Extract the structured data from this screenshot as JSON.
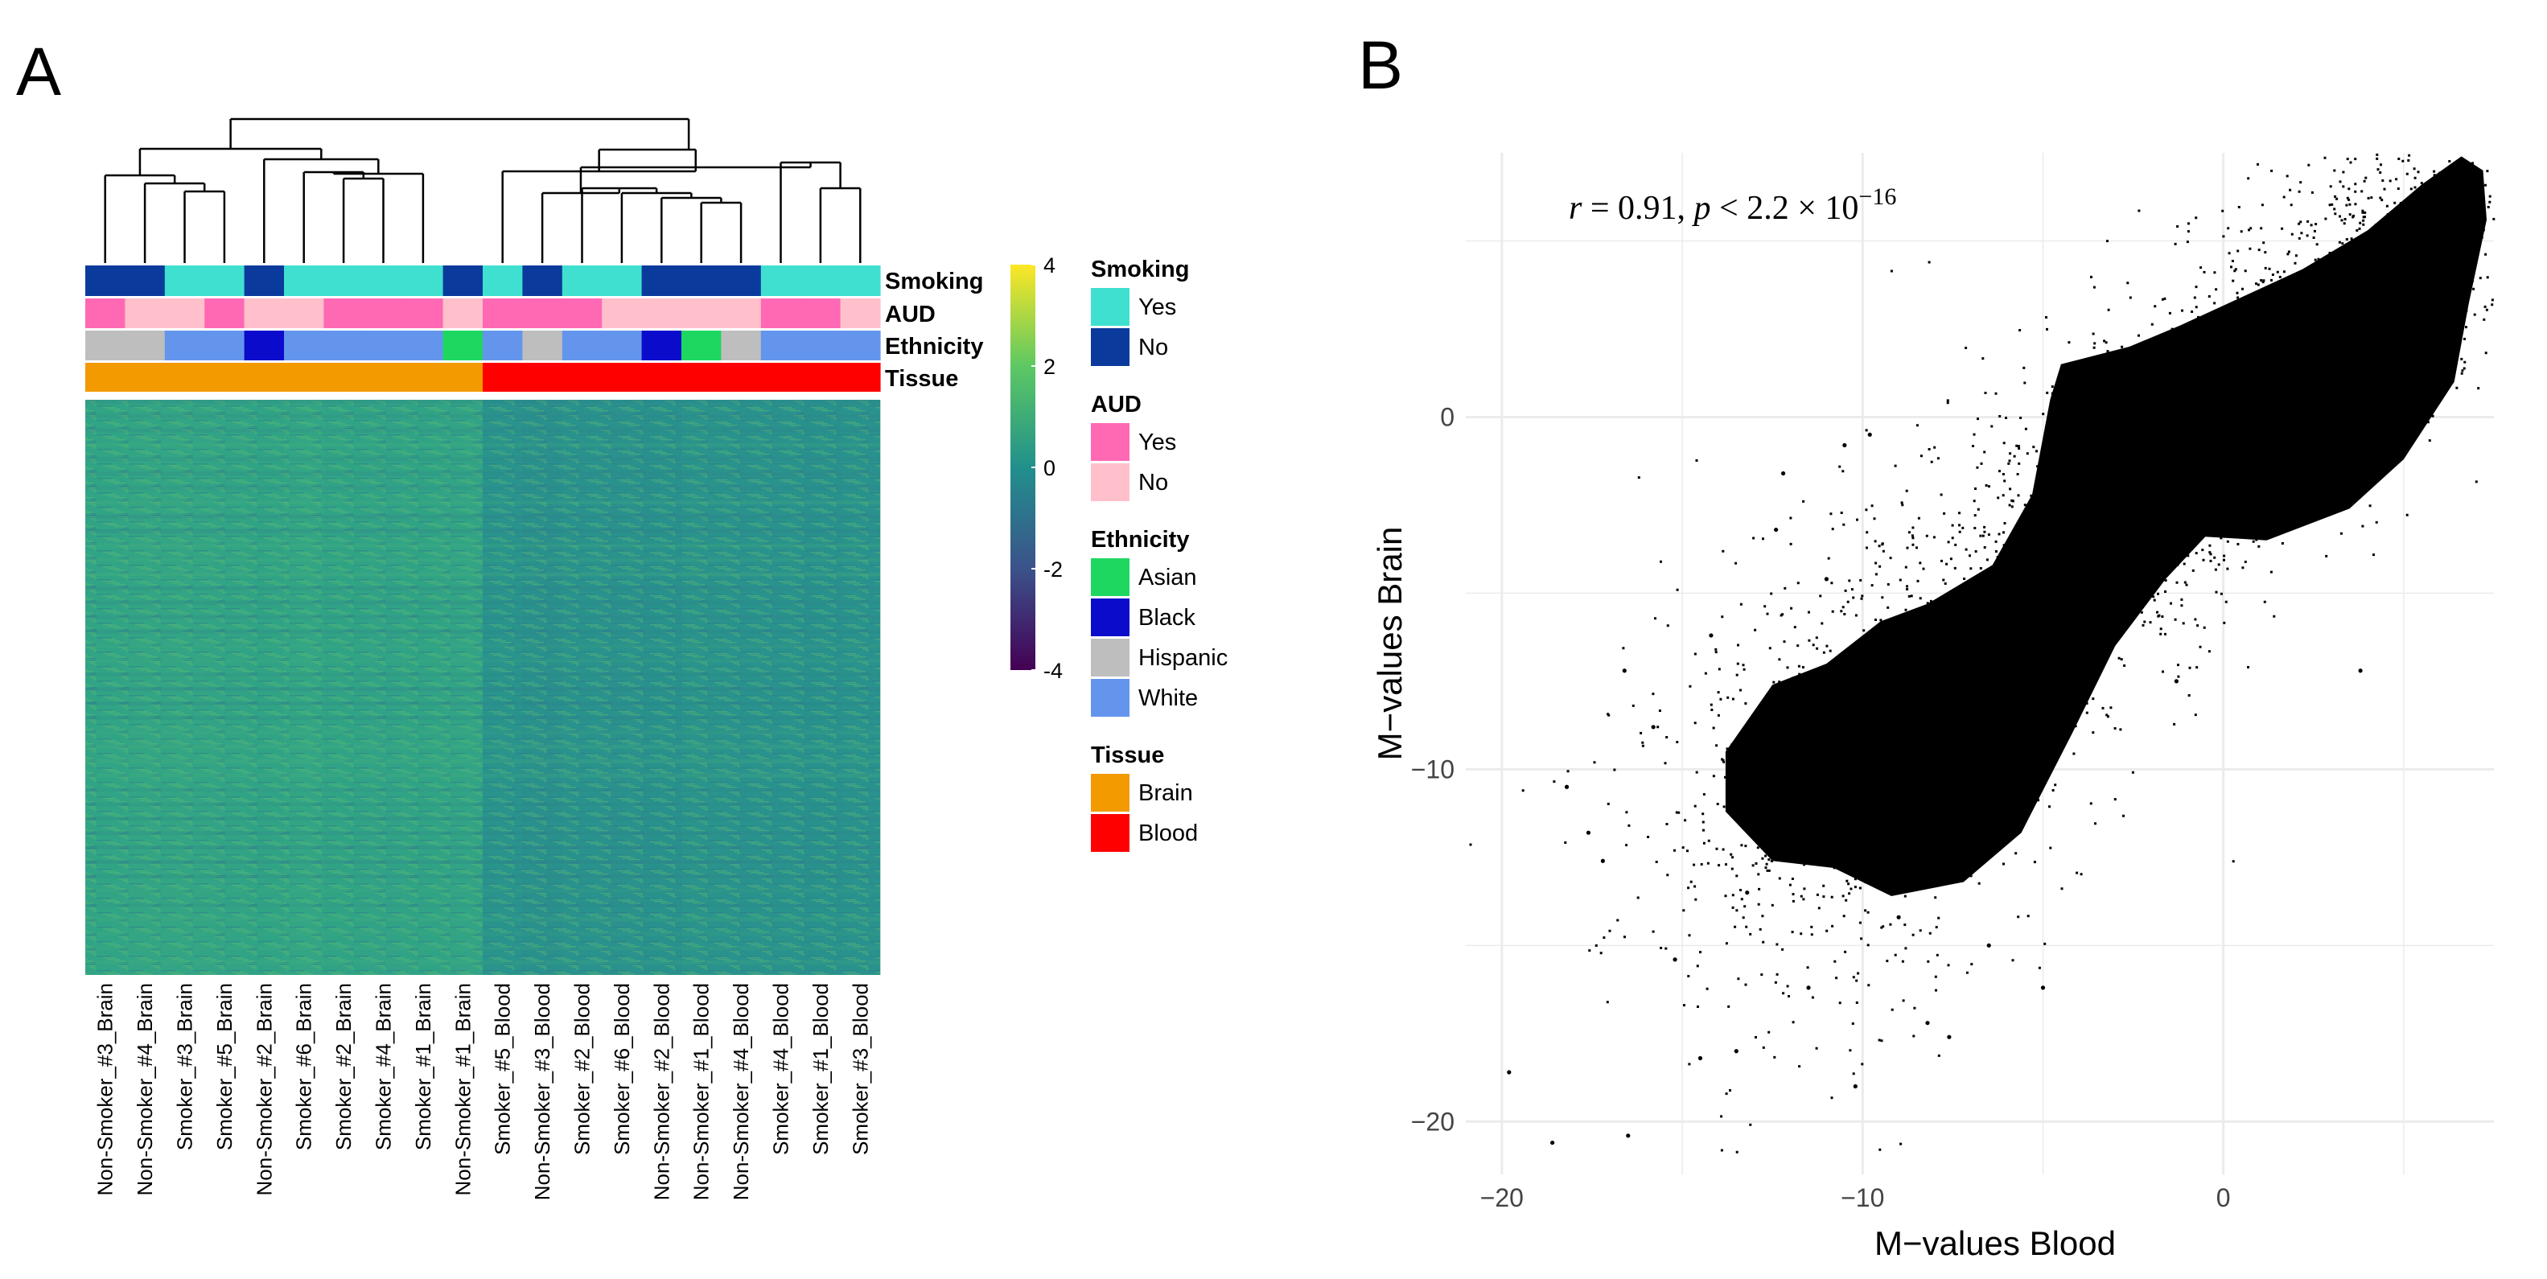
{
  "panels": {
    "a_label": "A",
    "b_label": "B"
  },
  "colors": {
    "smoking_yes": "#40E0D0",
    "smoking_no": "#0A3A9C",
    "aud_yes": "#FF69B4",
    "aud_no": "#FFC0CB",
    "eth_asian": "#1ED760",
    "eth_black": "#0B0BCC",
    "eth_hispanic": "#BEBEBE",
    "eth_white": "#6495ED",
    "tissue_brain": "#F29A00",
    "tissue_blood": "#FF0000",
    "viridis": [
      "#440154",
      "#3B528B",
      "#21908C",
      "#5DC863",
      "#FDE725"
    ]
  },
  "heatmap": {
    "samples": [
      {
        "name": "Non-Smoker_#3_Brain",
        "smoking": "No",
        "aud": "Yes",
        "ethnicity": "Hispanic",
        "tissue": "Brain"
      },
      {
        "name": "Non-Smoker_#4_Brain",
        "smoking": "No",
        "aud": "No",
        "ethnicity": "Hispanic",
        "tissue": "Brain"
      },
      {
        "name": "Smoker_#3_Brain",
        "smoking": "Yes",
        "aud": "No",
        "ethnicity": "White",
        "tissue": "Brain"
      },
      {
        "name": "Smoker_#5_Brain",
        "smoking": "Yes",
        "aud": "Yes",
        "ethnicity": "White",
        "tissue": "Brain"
      },
      {
        "name": "Non-Smoker_#2_Brain",
        "smoking": "No",
        "aud": "No",
        "ethnicity": "Black",
        "tissue": "Brain"
      },
      {
        "name": "Smoker_#6_Brain",
        "smoking": "Yes",
        "aud": "No",
        "ethnicity": "White",
        "tissue": "Brain"
      },
      {
        "name": "Smoker_#2_Brain",
        "smoking": "Yes",
        "aud": "Yes",
        "ethnicity": "White",
        "tissue": "Brain"
      },
      {
        "name": "Smoker_#4_Brain",
        "smoking": "Yes",
        "aud": "Yes",
        "ethnicity": "White",
        "tissue": "Brain"
      },
      {
        "name": "Smoker_#1_Brain",
        "smoking": "Yes",
        "aud": "Yes",
        "ethnicity": "White",
        "tissue": "Brain"
      },
      {
        "name": "Non-Smoker_#1_Brain",
        "smoking": "No",
        "aud": "No",
        "ethnicity": "Asian",
        "tissue": "Brain"
      },
      {
        "name": "Smoker_#5_Blood",
        "smoking": "Yes",
        "aud": "Yes",
        "ethnicity": "White",
        "tissue": "Blood"
      },
      {
        "name": "Non-Smoker_#3_Blood",
        "smoking": "No",
        "aud": "Yes",
        "ethnicity": "Hispanic",
        "tissue": "Blood"
      },
      {
        "name": "Smoker_#2_Blood",
        "smoking": "Yes",
        "aud": "Yes",
        "ethnicity": "White",
        "tissue": "Blood"
      },
      {
        "name": "Smoker_#6_Blood",
        "smoking": "Yes",
        "aud": "No",
        "ethnicity": "White",
        "tissue": "Blood"
      },
      {
        "name": "Non-Smoker_#2_Blood",
        "smoking": "No",
        "aud": "No",
        "ethnicity": "Black",
        "tissue": "Blood"
      },
      {
        "name": "Non-Smoker_#1_Blood",
        "smoking": "No",
        "aud": "No",
        "ethnicity": "Asian",
        "tissue": "Blood"
      },
      {
        "name": "Non-Smoker_#4_Blood",
        "smoking": "No",
        "aud": "No",
        "ethnicity": "Hispanic",
        "tissue": "Blood"
      },
      {
        "name": "Smoker_#4_Blood",
        "smoking": "Yes",
        "aud": "Yes",
        "ethnicity": "White",
        "tissue": "Blood"
      },
      {
        "name": "Smoker_#1_Blood",
        "smoking": "Yes",
        "aud": "Yes",
        "ethnicity": "White",
        "tissue": "Blood"
      },
      {
        "name": "Smoker_#3_Blood",
        "smoking": "Yes",
        "aud": "No",
        "ethnicity": "White",
        "tissue": "Blood"
      }
    ],
    "annotation_rows": [
      "Smoking",
      "AUD",
      "Ethnicity",
      "Tissue"
    ],
    "colorbar": {
      "ticks": [
        4,
        2,
        0,
        -2,
        -4
      ],
      "range": [
        -4,
        4
      ]
    },
    "legend": [
      {
        "title": "Smoking",
        "items": [
          {
            "label": "Yes",
            "color_key": "smoking_yes"
          },
          {
            "label": "No",
            "color_key": "smoking_no"
          }
        ]
      },
      {
        "title": "AUD",
        "items": [
          {
            "label": "Yes",
            "color_key": "aud_yes"
          },
          {
            "label": "No",
            "color_key": "aud_no"
          }
        ]
      },
      {
        "title": "Ethnicity",
        "items": [
          {
            "label": "Asian",
            "color_key": "eth_asian"
          },
          {
            "label": "Black",
            "color_key": "eth_black"
          },
          {
            "label": "Hispanic",
            "color_key": "eth_hispanic"
          },
          {
            "label": "White",
            "color_key": "eth_white"
          }
        ]
      },
      {
        "title": "Tissue",
        "items": [
          {
            "label": "Brain",
            "color_key": "tissue_brain"
          },
          {
            "label": "Blood",
            "color_key": "tissue_blood"
          }
        ]
      }
    ]
  },
  "chart_data": {
    "type": "scatter",
    "xlabel": "M−values Blood",
    "ylabel": "M−values Brain",
    "xlim": [
      -21,
      7.5
    ],
    "ylim": [
      -21.5,
      7.5
    ],
    "xticks": [
      -20,
      -10,
      0
    ],
    "yticks": [
      0,
      -10,
      -20
    ],
    "xtick_labels": [
      "−20",
      "−10",
      "0"
    ],
    "ytick_labels": [
      "0",
      "−10",
      "−20"
    ],
    "grid": true,
    "annotation": {
      "r_symbol": "r",
      "r_text": " = 0.91, ",
      "p_symbol": "p",
      "p_text": " < 2.2 × 10",
      "p_exp": "−16"
    },
    "points_description": "dense cloud along y ≈ x, r = 0.91",
    "outliers": [
      {
        "x": -19.8,
        "y": -18.6
      },
      {
        "x": -18.6,
        "y": -20.6
      },
      {
        "x": -16.5,
        "y": -20.4
      },
      {
        "x": -18.2,
        "y": -10.5
      },
      {
        "x": -17.6,
        "y": -11.8
      },
      {
        "x": -17.2,
        "y": -12.6
      },
      {
        "x": -16.6,
        "y": -7.2
      },
      {
        "x": -15.2,
        "y": -15.4
      },
      {
        "x": -14.5,
        "y": -18.2
      },
      {
        "x": -13.5,
        "y": -18.0
      },
      {
        "x": -12.2,
        "y": -1.6
      },
      {
        "x": -10.5,
        "y": -0.8
      },
      {
        "x": -9.8,
        "y": -0.5
      },
      {
        "x": -10.2,
        "y": -19.0
      },
      {
        "x": -7.6,
        "y": -17.6
      },
      {
        "x": -5.0,
        "y": -16.2
      },
      {
        "x": -8.2,
        "y": -17.2
      },
      {
        "x": -11.5,
        "y": -16.2
      },
      {
        "x": -13.2,
        "y": -13.5
      },
      {
        "x": -1.3,
        "y": -7.5
      },
      {
        "x": 3.8,
        "y": -7.2
      },
      {
        "x": -12.4,
        "y": -3.2
      },
      {
        "x": -15.8,
        "y": -8.8
      },
      {
        "x": -11.0,
        "y": -4.6
      },
      {
        "x": -14.2,
        "y": -6.2
      },
      {
        "x": -6.5,
        "y": -15.0
      },
      {
        "x": -9.0,
        "y": -14.2
      }
    ]
  }
}
